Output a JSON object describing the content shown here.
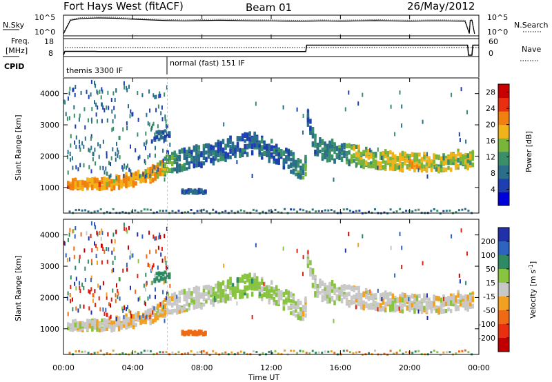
{
  "header": {
    "station": "Fort Hays West (fitACF)",
    "beam": "Beam 01",
    "date": "26/May/2012"
  },
  "panels": {
    "nsky": {
      "label": "N.Sky",
      "ticks": [
        "10^5",
        "10^0"
      ],
      "right_label": "N.Search"
    },
    "freq": {
      "label_top": "Freq.",
      "label_unit": "[MHz]",
      "ticks": [
        "18",
        "8"
      ],
      "right_ticks": [
        "60",
        "0"
      ],
      "right_label": "Nave"
    },
    "cpid": {
      "label": "CPID",
      "programs": [
        "themis 3300 IF",
        "normal (fast) 151 IF"
      ]
    }
  },
  "chart_data": [
    {
      "type": "line",
      "name": "nsky",
      "x": [
        0,
        0.4,
        1,
        2,
        3,
        4,
        5,
        6,
        7,
        8,
        9,
        10,
        11,
        12,
        13,
        14,
        15,
        16,
        17,
        18,
        19,
        20,
        21,
        22,
        23.2,
        23.45,
        23.5,
        23.6,
        23.75
      ],
      "series": [
        {
          "values": [
            0.2,
            4.3,
            4.8,
            5.0,
            4.9,
            4.6,
            4.4,
            4.2,
            4.1,
            4.2,
            4.3,
            4.2,
            4.1,
            4.1,
            4.0,
            4.0,
            4.1,
            4.0,
            4.1,
            4.2,
            4.1,
            4.0,
            4.1,
            4.1,
            4.0,
            0.3,
            4.2,
            4.3,
            0.2
          ]
        }
      ],
      "ylim": [
        0,
        5
      ],
      "xlim": [
        0,
        24
      ]
    },
    {
      "type": "line",
      "name": "frequency",
      "x": [
        0,
        0.08,
        1.8,
        2.0,
        6.0,
        14.0,
        14.05,
        23.35,
        23.4,
        23.6,
        23.65,
        24
      ],
      "series": [
        {
          "values": [
            8,
            10.5,
            10.5,
            10.4,
            10.4,
            10.4,
            14.6,
            14.6,
            8,
            8,
            14.6,
            14.6
          ]
        }
      ],
      "ylim": [
        8,
        18
      ],
      "xlim": [
        0,
        24
      ]
    },
    {
      "type": "heatmap",
      "name": "power",
      "ylabel": "Slant Range [km]",
      "xlim": [
        0,
        24
      ],
      "ylim": [
        180,
        4500
      ],
      "y_ticks": [
        1000,
        2000,
        3000,
        4000
      ],
      "colorbar": {
        "label": "Power [dB]",
        "ticks": [
          4,
          8,
          12,
          16,
          20,
          24,
          28
        ],
        "range": [
          0,
          30
        ]
      },
      "echo_band": {
        "x": [
          0,
          1,
          2,
          3,
          4,
          5,
          5.5,
          6,
          7,
          8,
          9,
          10,
          11,
          12,
          13,
          13.9,
          14.05,
          14.5,
          15,
          16,
          17,
          18,
          19,
          20,
          21,
          22,
          23,
          23.5
        ],
        "range_km": [
          1100,
          1100,
          1120,
          1160,
          1250,
          1420,
          1550,
          1750,
          1900,
          2000,
          2150,
          2350,
          2400,
          2150,
          1850,
          1450,
          3300,
          2350,
          2200,
          2100,
          2000,
          1900,
          1850,
          1800,
          1800,
          1800,
          1900,
          1900
        ],
        "width_km": [
          140,
          140,
          160,
          180,
          200,
          220,
          240,
          280,
          320,
          330,
          330,
          330,
          330,
          330,
          330,
          280,
          300,
          320,
          320,
          320,
          300,
          280,
          280,
          260,
          260,
          260,
          280,
          280
        ],
        "power_db": [
          22,
          21,
          21,
          20,
          21,
          20,
          20,
          12,
          9,
          7,
          7,
          6,
          6,
          7,
          8,
          12,
          6,
          9,
          9,
          10,
          14,
          16,
          17,
          18,
          17,
          16,
          16,
          15
        ]
      },
      "patches": [
        {
          "x": [
            6.8,
            8.2
          ],
          "range_km": [
            800,
            920
          ],
          "power_db": 6
        },
        {
          "x": [
            5.2,
            6.1
          ],
          "range_km": [
            2500,
            2800
          ],
          "power_db": 6
        }
      ]
    },
    {
      "type": "heatmap",
      "name": "velocity",
      "ylabel": "Slant Range [km]",
      "xlabel": "Time UT",
      "xlim": [
        0,
        24
      ],
      "ylim": [
        180,
        4500
      ],
      "y_ticks": [
        1000,
        2000,
        3000,
        4000
      ],
      "x_ticks": [
        "00:00",
        "04:00",
        "08:00",
        "12:00",
        "16:00",
        "20:00",
        "00:00"
      ],
      "colorbar": {
        "label": "Velocity [m s^-1]",
        "ticks": [
          200,
          100,
          50,
          15,
          -15,
          -50,
          -100,
          -200
        ],
        "range": [
          -250,
          250
        ]
      },
      "echo_band_velocity_m_s": [
        0,
        0,
        0,
        -5,
        -10,
        -15,
        -20,
        -10,
        5,
        10,
        20,
        40,
        30,
        20,
        10,
        0,
        5,
        10,
        5,
        0,
        0,
        0,
        0,
        0,
        -5,
        0,
        -5,
        0
      ],
      "patches": [
        {
          "x": [
            6.8,
            8.2
          ],
          "range_km": [
            800,
            920
          ],
          "velocity_m_s": -60
        },
        {
          "x": [
            5.2,
            6.1
          ],
          "range_km": [
            2500,
            2800
          ],
          "velocity_m_s": 60
        }
      ]
    }
  ]
}
